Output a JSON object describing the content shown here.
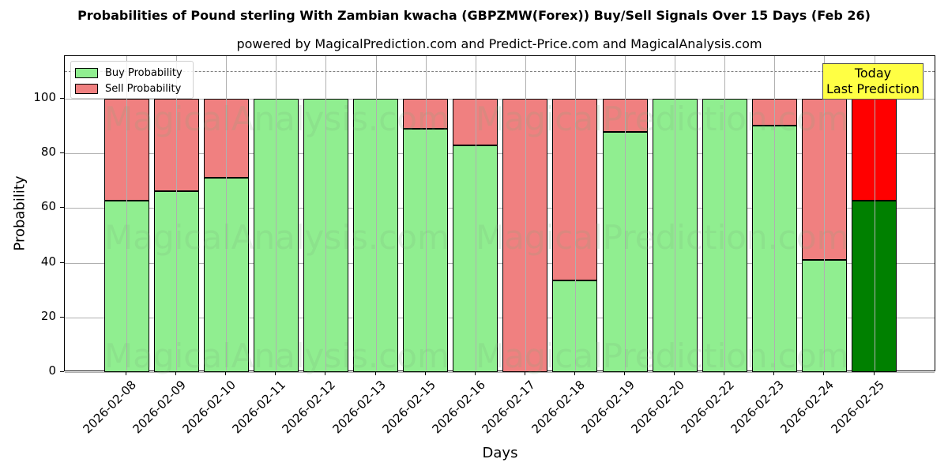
{
  "title": "Probabilities of Pound sterling With Zambian kwacha (GBPZMW(Forex)) Buy/Sell Signals Over 15 Days (Feb 26)",
  "subtitle": "powered by MagicalPrediction.com and Predict-Price.com and MagicalAnalysis.com",
  "legend": {
    "buy_label": "Buy Probability",
    "sell_label": "Sell Probability"
  },
  "annotation": {
    "line1": "Today",
    "line2": "Last Prediction"
  },
  "axes": {
    "xlabel": "Days",
    "ylabel": "Probability",
    "yticks": [
      "0",
      "20",
      "40",
      "60",
      "80",
      "100"
    ]
  },
  "watermarks": [
    "MagicalAnalysis.com",
    "MagicalPrediction.com"
  ],
  "colors": {
    "buy": "#90ee90",
    "sell": "#f08080",
    "buy_today": "#008000",
    "sell_today": "#ff0000",
    "annotation_bg": "#ffff44"
  },
  "chart_data": {
    "type": "bar",
    "stacked": true,
    "title": "Probabilities of Pound sterling With Zambian kwacha (GBPZMW(Forex)) Buy/Sell Signals Over 15 Days (Feb 26)",
    "subtitle": "powered by MagicalPrediction.com and Predict-Price.com and MagicalAnalysis.com",
    "xlabel": "Days",
    "ylabel": "Probability",
    "ylim": [
      0,
      115
    ],
    "yticks": [
      0,
      20,
      40,
      60,
      80,
      100
    ],
    "grid": true,
    "legend_position": "upper left",
    "threshold_line": 110,
    "categories": [
      "2026-02-08",
      "2026-02-09",
      "2026-02-10",
      "2026-02-11",
      "2026-02-12",
      "2026-02-13",
      "2026-02-15",
      "2026-02-16",
      "2026-02-17",
      "2026-02-18",
      "2026-02-19",
      "2026-02-20",
      "2026-02-22",
      "2026-02-23",
      "2026-02-24",
      "2026-02-25"
    ],
    "series": [
      {
        "name": "Buy Probability",
        "values": [
          62.7,
          66.2,
          71.1,
          100,
          100,
          100,
          89.0,
          82.9,
          0,
          33.5,
          87.9,
          100,
          100,
          90.2,
          41.0,
          62.7
        ]
      },
      {
        "name": "Sell Probability",
        "values": [
          37.3,
          33.8,
          28.9,
          0,
          0,
          0,
          11.0,
          17.1,
          100,
          66.5,
          12.1,
          0,
          0,
          9.8,
          59.0,
          37.3
        ]
      }
    ],
    "annotations": [
      {
        "text": "Today\nLast Prediction",
        "x": "2026-02-25",
        "y": 110
      }
    ]
  }
}
